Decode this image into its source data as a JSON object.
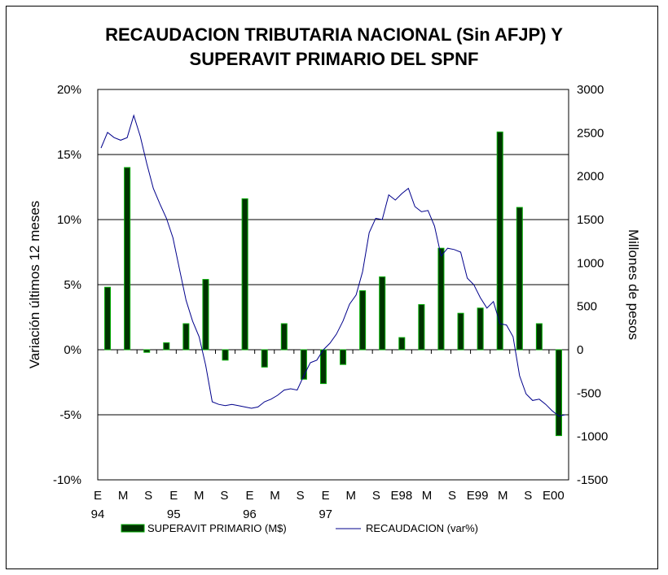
{
  "chart_data": {
    "type": "bar",
    "title_lines": [
      "RECAUDACION TRIBUTARIA NACIONAL (Sin AFJP) Y",
      "SUPERAVIT PRIMARIO DEL SPNF"
    ],
    "ylabel_left": "Variación últimos 12 meses",
    "ylabel_right": "Millones de pesos",
    "y_left": {
      "range": [
        -0.1,
        0.2
      ],
      "ticks": [
        -0.1,
        -0.05,
        0,
        0.05,
        0.1,
        0.15,
        0.2
      ],
      "tick_labels": [
        "-10%",
        "-5%",
        "0%",
        "5%",
        "10%",
        "15%",
        "20%"
      ]
    },
    "y_right": {
      "range": [
        -1500,
        3000
      ],
      "ticks": [
        -1500,
        -1000,
        -500,
        0,
        500,
        1000,
        1500,
        2000,
        2500,
        3000
      ],
      "tick_labels": [
        "-1500",
        "-1000",
        "-500",
        "0",
        "500",
        "1000",
        "1500",
        "2000",
        "2500",
        "3000"
      ]
    },
    "gridlines": true,
    "x_tick_labels": [
      [
        "E",
        "94"
      ],
      [
        "M",
        ""
      ],
      [
        "S",
        ""
      ],
      [
        "E",
        "95"
      ],
      [
        "M",
        ""
      ],
      [
        "S",
        ""
      ],
      [
        "E",
        "96"
      ],
      [
        "M",
        ""
      ],
      [
        "S",
        ""
      ],
      [
        "E",
        "97"
      ],
      [
        "M",
        ""
      ],
      [
        "S",
        ""
      ],
      [
        "E98",
        ""
      ],
      [
        "M",
        ""
      ],
      [
        "S",
        ""
      ],
      [
        "E99",
        ""
      ],
      [
        "M",
        ""
      ],
      [
        "S",
        ""
      ],
      [
        "E00",
        ""
      ]
    ],
    "series": [
      {
        "name": "SUPERAVIT PRIMARIO (M$)",
        "kind": "bar",
        "axis": "right",
        "color": "#003300",
        "edge_color": "#00aa00",
        "values": [
          720,
          2100,
          -30,
          80,
          300,
          810,
          -120,
          1740,
          -200,
          300,
          -340,
          -390,
          -170,
          680,
          840,
          140,
          520,
          1170,
          420,
          480,
          2510,
          1640,
          300,
          -990
        ]
      },
      {
        "name": "RECAUDACION (var%)",
        "kind": "line",
        "axis": "left",
        "color": "#00008b",
        "values": [
          0.155,
          0.167,
          0.163,
          0.161,
          0.163,
          0.18,
          0.164,
          0.143,
          0.124,
          0.112,
          0.101,
          0.086,
          0.062,
          0.038,
          0.022,
          0.01,
          -0.012,
          -0.04,
          -0.042,
          -0.043,
          -0.042,
          -0.043,
          -0.044,
          -0.045,
          -0.044,
          -0.04,
          -0.038,
          -0.035,
          -0.031,
          -0.03,
          -0.031,
          -0.02,
          -0.01,
          -0.008,
          0.0,
          0.005,
          0.012,
          0.022,
          0.035,
          0.042,
          0.06,
          0.09,
          0.101,
          0.1,
          0.119,
          0.115,
          0.12,
          0.124,
          0.11,
          0.106,
          0.107,
          0.095,
          0.072,
          0.078,
          0.077,
          0.075,
          0.055,
          0.05,
          0.04,
          0.032,
          0.037,
          0.02,
          0.019,
          0.01,
          -0.02,
          -0.034,
          -0.039,
          -0.038,
          -0.042,
          -0.047,
          -0.051,
          -0.05
        ]
      }
    ]
  }
}
